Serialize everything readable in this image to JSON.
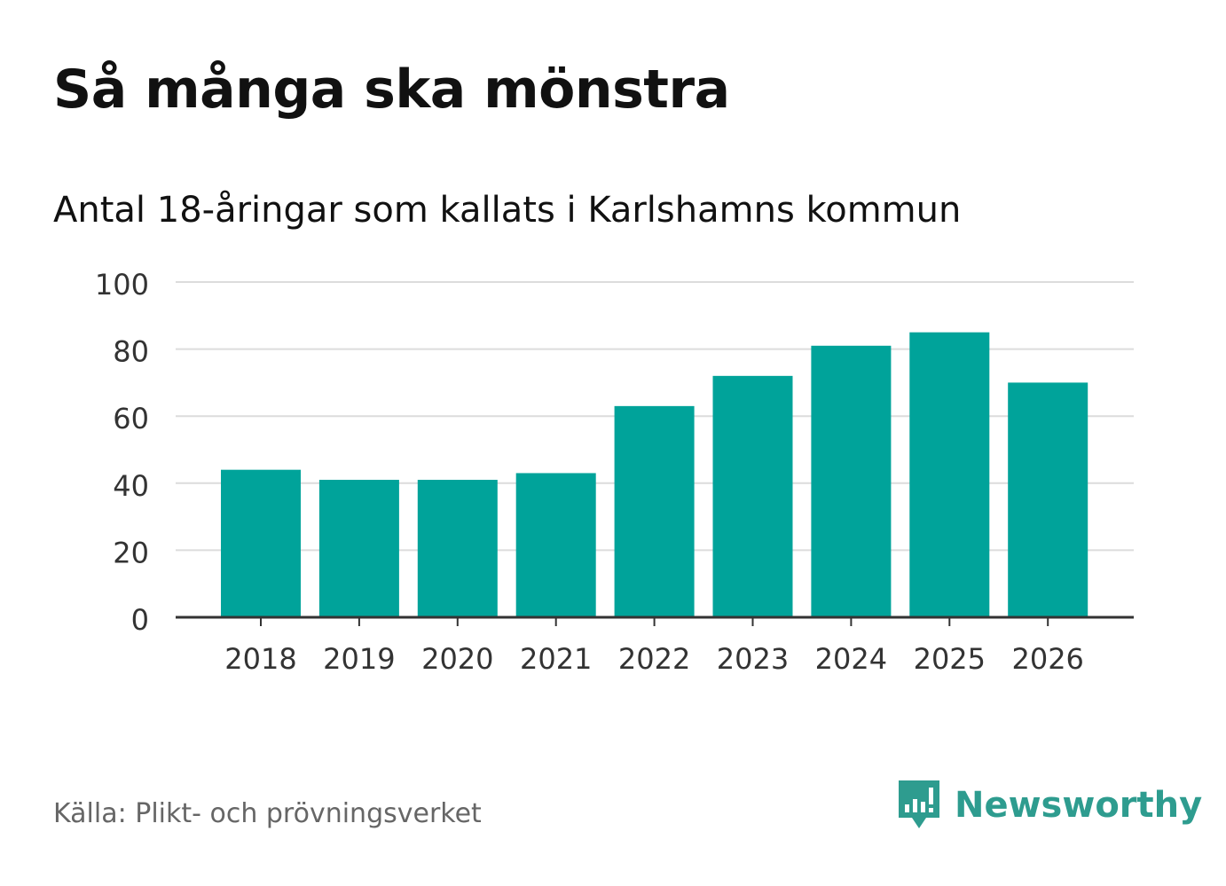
{
  "colors": {
    "bar": "#00a39a",
    "grid": "#dcdcdc",
    "axis": "#333333",
    "tick_text": "#333333",
    "brand": "#2e9c8f"
  },
  "footer": {
    "source": "Källa: Plikt- och prövningsverket",
    "brand_name": "Newsworthy",
    "brand_icon": "newsworthy-logo-icon"
  },
  "chart_data": {
    "type": "bar",
    "title": "Så många ska mönstra",
    "subtitle": "Antal 18-åringar som kallats i Karlshamns kommun",
    "xlabel": "",
    "ylabel": "",
    "categories": [
      "2018",
      "2019",
      "2020",
      "2021",
      "2022",
      "2023",
      "2024",
      "2025",
      "2026"
    ],
    "values": [
      44,
      41,
      41,
      43,
      63,
      72,
      81,
      85,
      70
    ],
    "ylim": [
      0,
      100
    ],
    "yticks": [
      0,
      20,
      40,
      60,
      80,
      100
    ],
    "grid": true,
    "legend": "none"
  }
}
